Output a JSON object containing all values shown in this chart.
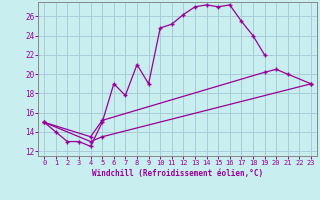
{
  "bg_color": "#c8eef0",
  "grid_color": "#a8ccd8",
  "line_color": "#990099",
  "spine_color": "#888888",
  "xlabel": "Windchill (Refroidissement éolien,°C)",
  "xlim": [
    -0.5,
    23.5
  ],
  "ylim": [
    11.5,
    27.5
  ],
  "xticks": [
    0,
    1,
    2,
    3,
    4,
    5,
    6,
    7,
    8,
    9,
    10,
    11,
    12,
    13,
    14,
    15,
    16,
    17,
    18,
    19,
    20,
    21,
    22,
    23
  ],
  "yticks": [
    12,
    14,
    16,
    18,
    20,
    22,
    24,
    26
  ],
  "series": [
    {
      "x": [
        0,
        1,
        2,
        3,
        4,
        5,
        6,
        7,
        8,
        9,
        10,
        11,
        12,
        13,
        14,
        15,
        16,
        17,
        18,
        19
      ],
      "y": [
        15.0,
        14.0,
        13.0,
        13.0,
        12.5,
        15.0,
        19.0,
        17.8,
        21.0,
        19.0,
        24.8,
        25.2,
        26.2,
        27.0,
        27.2,
        27.0,
        27.2,
        25.5,
        24.0,
        22.0
      ]
    },
    {
      "x": [
        0,
        4,
        5,
        19,
        20,
        21,
        23
      ],
      "y": [
        15.0,
        13.5,
        15.2,
        20.2,
        20.5,
        20.0,
        19.0
      ]
    },
    {
      "x": [
        0,
        4,
        5,
        23
      ],
      "y": [
        15.0,
        13.0,
        13.5,
        19.0
      ]
    }
  ]
}
